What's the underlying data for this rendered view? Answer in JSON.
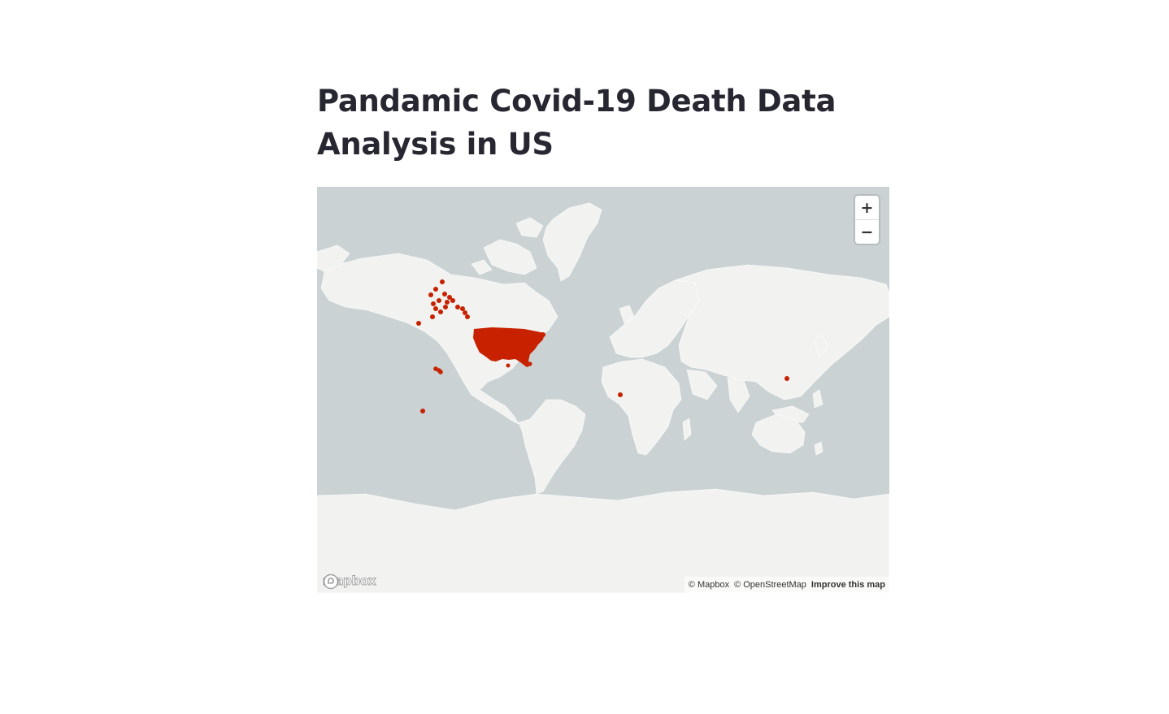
{
  "page": {
    "title": "Pandamic Covid-19 Death Data Analysis in US"
  },
  "map": {
    "zoom_in_label": "+",
    "zoom_out_label": "−",
    "logo_text": "mapbox",
    "attribution_mapbox": "© Mapbox",
    "attribution_osm": "© OpenStreetMap",
    "improve_link": "Improve this map",
    "colors": {
      "water": "#cad2d3",
      "land": "#f2f2f1",
      "marker": "#c72100"
    },
    "markers": [
      {
        "label": "",
        "region": "alaska"
      },
      {
        "label": "",
        "region": "contiguous-us"
      },
      {
        "label": "",
        "region": "hawaii"
      },
      {
        "label": "",
        "region": "american-samoa"
      },
      {
        "label": "",
        "region": "gulf-of-guinea"
      },
      {
        "label": "",
        "region": "guam"
      }
    ]
  }
}
